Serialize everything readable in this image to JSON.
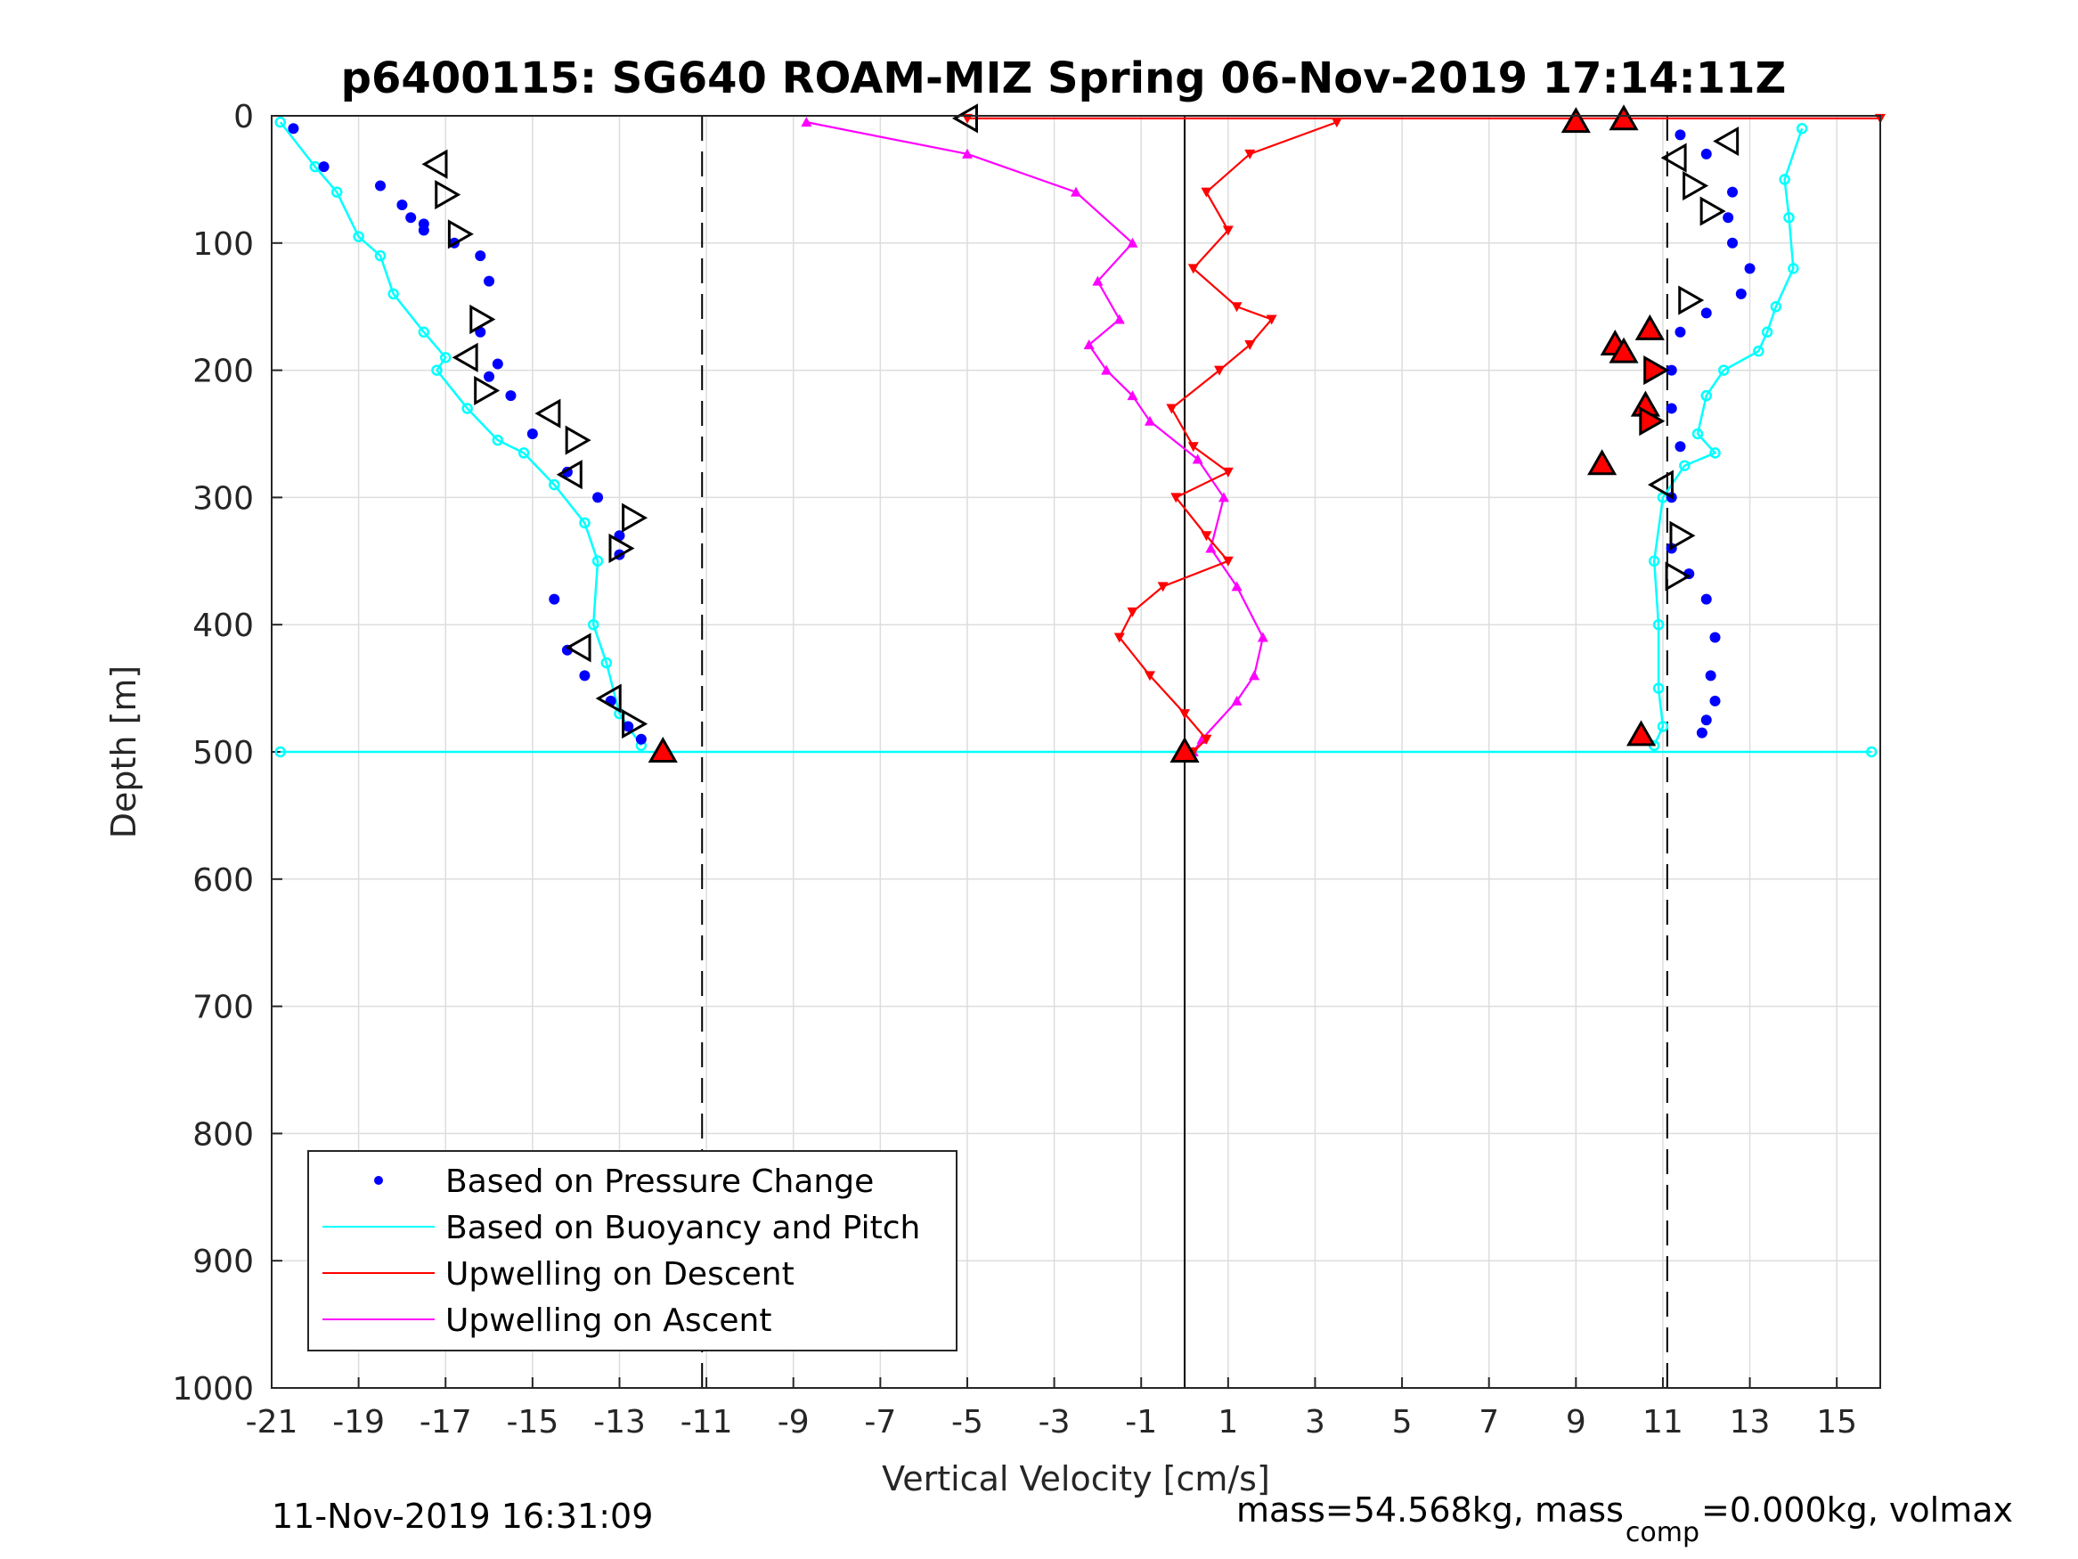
{
  "chart_data": {
    "type": "scatter",
    "title": "p6400115: SG640 ROAM-MIZ Spring 06-Nov-2019 17:14:11Z",
    "xlabel": "Vertical Velocity [cm/s]",
    "ylabel": "Depth [m]",
    "xlim": [
      -21,
      16
    ],
    "ylim": [
      1000,
      0
    ],
    "y_reversed": true,
    "grid": true,
    "xticks": [
      -21,
      -19,
      -17,
      -15,
      -13,
      -11,
      -9,
      -7,
      -5,
      -3,
      -1,
      1,
      3,
      5,
      7,
      9,
      11,
      13,
      15
    ],
    "yticks": [
      0,
      100,
      200,
      300,
      400,
      500,
      600,
      700,
      800,
      900,
      1000
    ],
    "legend_position": "bottom-left",
    "legend": [
      {
        "label": "Based on Pressure Change",
        "color": "#0000ff",
        "marker": "dot"
      },
      {
        "label": "Based on Buoyancy and Pitch",
        "color": "#00ffff",
        "marker": "line"
      },
      {
        "label": "Upwelling on Descent",
        "color": "#ff0000",
        "marker": "line"
      },
      {
        "label": "Upwelling on Ascent",
        "color": "#ff00ff",
        "marker": "line"
      }
    ],
    "reference_lines": [
      {
        "x": -11.1,
        "style": "dashed",
        "color": "#000000"
      },
      {
        "x": 11.1,
        "style": "dashed",
        "color": "#000000"
      },
      {
        "x": 0,
        "style": "solid",
        "color": "#000000"
      }
    ],
    "series": [
      {
        "name": "Based on Pressure Change",
        "color": "#0000ff",
        "profiles": [
          {
            "x": [
              -20.5,
              -19.8,
              -18.5,
              -18,
              -17.8,
              -17.5,
              -17.5,
              -16.8,
              -16.2,
              -16,
              -16.2,
              -15.8,
              -16,
              -15.5,
              -15,
              -14.2,
              -13.5,
              -13,
              -13,
              -14.5,
              -14.2,
              -13.8,
              -13.2,
              -12.8,
              -12.5
            ],
            "y": [
              10,
              40,
              55,
              70,
              80,
              85,
              90,
              100,
              110,
              130,
              170,
              195,
              205,
              220,
              250,
              280,
              300,
              330,
              345,
              380,
              420,
              440,
              460,
              480,
              490
            ]
          },
          {
            "x": [
              11.4,
              12,
              12.6,
              12.5,
              12.6,
              13,
              12.8,
              12,
              11.4,
              11.2,
              11.2,
              11.4,
              11.2,
              11.2,
              11.6,
              12,
              12.2,
              12.1,
              12.2,
              12,
              11.9
            ],
            "y": [
              15,
              30,
              60,
              80,
              100,
              120,
              140,
              155,
              170,
              200,
              230,
              260,
              300,
              340,
              360,
              380,
              410,
              440,
              460,
              475,
              485
            ]
          }
        ]
      },
      {
        "name": "Based on Buoyancy and Pitch",
        "color": "#00ffff",
        "profiles": [
          {
            "x": [
              -20.8,
              -20,
              -19.5,
              -19,
              -18.5,
              -18.2,
              -17.5,
              -17,
              -17.2,
              -16.5,
              -15.8,
              -15.2,
              -14.5,
              -13.8,
              -13.5,
              -13.6,
              -13.3,
              -13,
              -12.5
            ],
            "y": [
              5,
              40,
              60,
              95,
              110,
              140,
              170,
              190,
              200,
              230,
              255,
              265,
              290,
              320,
              350,
              400,
              430,
              470,
              495
            ]
          },
          {
            "x": [
              14.2,
              13.8,
              13.9,
              14,
              13.6,
              13.4,
              13.2,
              12.4,
              12,
              11.8,
              12.2,
              11.5,
              11,
              10.8,
              10.9,
              10.9,
              11,
              10.8
            ],
            "y": [
              10,
              50,
              80,
              120,
              150,
              170,
              185,
              200,
              220,
              250,
              265,
              275,
              300,
              350,
              400,
              450,
              480,
              495
            ]
          },
          {
            "x": [
              -20.8,
              15.8
            ],
            "y": [
              500,
              500
            ]
          }
        ]
      },
      {
        "name": "Upwelling on Descent",
        "color": "#ff0000",
        "profiles": [
          {
            "x": [
              3.5,
              1.5,
              0.5,
              1,
              0.2,
              1.2,
              2,
              1.5,
              0.8,
              -0.3,
              0.2,
              1,
              -0.2,
              0.5,
              1,
              -0.5,
              -1.2,
              -1.5,
              -0.8,
              0,
              0.5,
              0.2
            ],
            "y": [
              5,
              30,
              60,
              90,
              120,
              150,
              160,
              180,
              200,
              230,
              260,
              280,
              300,
              330,
              350,
              370,
              390,
              410,
              440,
              470,
              490,
              500
            ]
          },
          {
            "x": [
              -5,
              16
            ],
            "y": [
              2,
              2
            ]
          }
        ]
      },
      {
        "name": "Upwelling on Ascent",
        "color": "#ff00ff",
        "profiles": [
          {
            "x": [
              -8.7,
              -5,
              -2.5,
              -1.2,
              -2,
              -1.5,
              -2.2,
              -1.8,
              -1.2,
              -0.8,
              0.3,
              0.9,
              0.6,
              1.2,
              1.8,
              1.6,
              1.2,
              0.4,
              0.2
            ],
            "y": [
              5,
              30,
              60,
              100,
              130,
              160,
              180,
              200,
              220,
              240,
              270,
              300,
              340,
              370,
              410,
              440,
              460,
              490,
              500
            ]
          }
        ]
      }
    ],
    "markers": [
      {
        "x": -5,
        "y": 2,
        "shape": "triangle-left",
        "fill": "none"
      },
      {
        "x": -17.2,
        "y": 38,
        "shape": "triangle-left",
        "fill": "none"
      },
      {
        "x": -17,
        "y": 62,
        "shape": "triangle-right",
        "fill": "none"
      },
      {
        "x": -16.7,
        "y": 93,
        "shape": "triangle-right",
        "fill": "none"
      },
      {
        "x": -16.2,
        "y": 160,
        "shape": "triangle-right",
        "fill": "none"
      },
      {
        "x": -16.5,
        "y": 190,
        "shape": "triangle-left",
        "fill": "none"
      },
      {
        "x": -16.1,
        "y": 216,
        "shape": "triangle-right",
        "fill": "none"
      },
      {
        "x": -14.6,
        "y": 234,
        "shape": "triangle-left",
        "fill": "none"
      },
      {
        "x": -14,
        "y": 255,
        "shape": "triangle-right",
        "fill": "none"
      },
      {
        "x": -14.1,
        "y": 282,
        "shape": "triangle-left",
        "fill": "none"
      },
      {
        "x": -12.7,
        "y": 316,
        "shape": "triangle-right",
        "fill": "none"
      },
      {
        "x": -13,
        "y": 340,
        "shape": "triangle-right",
        "fill": "none"
      },
      {
        "x": -13.9,
        "y": 418,
        "shape": "triangle-left",
        "fill": "none"
      },
      {
        "x": -13.2,
        "y": 458,
        "shape": "triangle-left",
        "fill": "none"
      },
      {
        "x": -12.7,
        "y": 478,
        "shape": "triangle-right",
        "fill": "none"
      },
      {
        "x": 12.5,
        "y": 20,
        "shape": "triangle-left",
        "fill": "none"
      },
      {
        "x": 11.3,
        "y": 33,
        "shape": "triangle-left",
        "fill": "none"
      },
      {
        "x": 11.7,
        "y": 55,
        "shape": "triangle-right",
        "fill": "none"
      },
      {
        "x": 12.1,
        "y": 75,
        "shape": "triangle-right",
        "fill": "none"
      },
      {
        "x": 11.6,
        "y": 145,
        "shape": "triangle-right",
        "fill": "none"
      },
      {
        "x": 11,
        "y": 290,
        "shape": "triangle-left",
        "fill": "none"
      },
      {
        "x": 11.4,
        "y": 330,
        "shape": "triangle-right",
        "fill": "none"
      },
      {
        "x": 11.3,
        "y": 362,
        "shape": "triangle-right",
        "fill": "none"
      },
      {
        "x": -12,
        "y": 500,
        "shape": "triangle-up",
        "fill": "#ff0000"
      },
      {
        "x": 0,
        "y": 500,
        "shape": "triangle-up",
        "fill": "#ff0000"
      },
      {
        "x": 9,
        "y": 5,
        "shape": "triangle-up",
        "fill": "#ff0000"
      },
      {
        "x": 10.1,
        "y": 3,
        "shape": "triangle-up",
        "fill": "#ff0000"
      },
      {
        "x": 10.7,
        "y": 168,
        "shape": "triangle-up",
        "fill": "#ff0000"
      },
      {
        "x": 9.9,
        "y": 180,
        "shape": "triangle-up",
        "fill": "#ff0000"
      },
      {
        "x": 10.1,
        "y": 186,
        "shape": "triangle-up",
        "fill": "#ff0000"
      },
      {
        "x": 10.8,
        "y": 200,
        "shape": "triangle-right",
        "fill": "#ff0000"
      },
      {
        "x": 10.6,
        "y": 228,
        "shape": "triangle-up",
        "fill": "#ff0000"
      },
      {
        "x": 10.7,
        "y": 240,
        "shape": "triangle-right",
        "fill": "#ff0000"
      },
      {
        "x": 9.6,
        "y": 274,
        "shape": "triangle-up",
        "fill": "#ff0000"
      },
      {
        "x": 10.5,
        "y": 487,
        "shape": "triangle-up",
        "fill": "#ff0000"
      }
    ]
  },
  "footer": {
    "timestamp": "11-Nov-2019 16:31:09",
    "mass_prefix": "mass=54.568kg, mass",
    "mass_sub": "comp",
    "mass_suffix": "=0.000kg, volmax"
  }
}
